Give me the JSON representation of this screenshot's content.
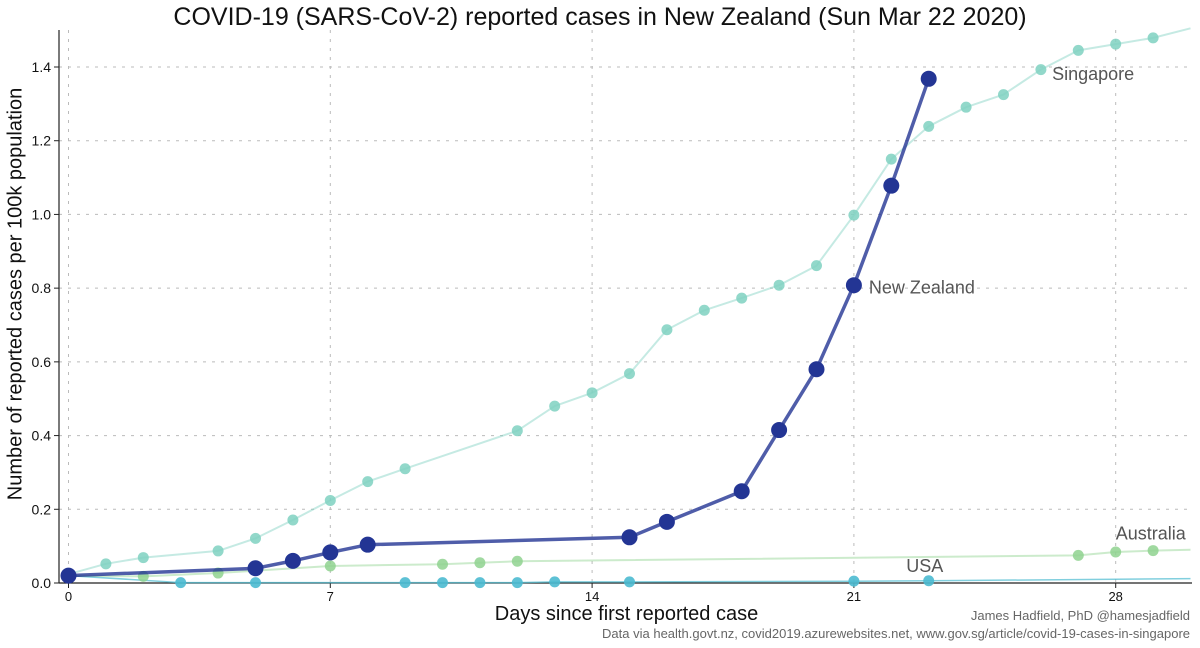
{
  "title": "COVID-19 (SARS-CoV-2) reported cases in New Zealand (Sun Mar 22 2020)",
  "credit": "James Hadfield, PhD @hamesjadfield",
  "source": "Data via health.govt.nz, covid2019.azurewebsites.net, www.gov.sg/article/covid-19-cases-in-singapore",
  "chart_data": {
    "type": "line",
    "xlabel": "Days since first reported case",
    "ylabel": "Number of reported cases per 100k population",
    "xlim": [
      -0.3,
      30
    ],
    "ylim": [
      0,
      1.5
    ],
    "x_ticks": [
      0,
      7,
      14,
      21,
      28
    ],
    "y_ticks": [
      0.0,
      0.2,
      0.4,
      0.6,
      0.8,
      1.0,
      1.2,
      1.4
    ],
    "y_tick_labels": [
      "0.0",
      "0.2",
      "0.4",
      "0.6",
      "0.8",
      "1.0",
      "1.2",
      "1.4"
    ],
    "grid": "dotted vertical and horizontal",
    "series": [
      {
        "name": "Singapore",
        "color": "#7fd1c1",
        "points": [
          [
            0,
            0.024
          ],
          [
            1,
            0.052
          ],
          [
            2,
            0.069
          ],
          [
            4,
            0.087
          ],
          [
            5,
            0.121
          ],
          [
            6,
            0.171
          ],
          [
            7,
            0.224
          ],
          [
            8,
            0.275
          ],
          [
            9,
            0.31
          ],
          [
            12,
            0.413
          ],
          [
            13,
            0.48
          ],
          [
            14,
            0.516
          ],
          [
            15,
            0.568
          ],
          [
            16,
            0.687
          ],
          [
            17,
            0.74
          ],
          [
            18,
            0.773
          ],
          [
            19,
            0.808
          ],
          [
            20,
            0.861
          ],
          [
            21,
            0.998
          ],
          [
            22,
            1.15
          ],
          [
            23,
            1.239
          ],
          [
            24,
            1.291
          ],
          [
            25,
            1.325
          ],
          [
            26,
            1.393
          ],
          [
            27,
            1.445
          ],
          [
            28,
            1.462
          ],
          [
            29,
            1.479
          ]
        ],
        "line_extends_to": [
          30,
          1.505
        ]
      },
      {
        "name": "New Zealand",
        "color": "#233594",
        "points": [
          [
            0,
            0.02
          ],
          [
            5,
            0.04
          ],
          [
            6,
            0.06
          ],
          [
            7,
            0.083
          ],
          [
            8,
            0.104
          ],
          [
            15,
            0.124
          ],
          [
            16,
            0.166
          ],
          [
            18,
            0.249
          ],
          [
            19,
            0.415
          ],
          [
            20,
            0.58
          ],
          [
            21,
            0.808
          ],
          [
            22,
            1.078
          ],
          [
            23,
            1.368
          ]
        ]
      },
      {
        "name": "Australia",
        "color": "#8fd28f",
        "points": [
          [
            2,
            0.018
          ],
          [
            4,
            0.027
          ],
          [
            7,
            0.046
          ],
          [
            10,
            0.051
          ],
          [
            11,
            0.055
          ],
          [
            12,
            0.059
          ],
          [
            27,
            0.075
          ],
          [
            28,
            0.084
          ],
          [
            29,
            0.088
          ]
        ],
        "line_extends_to": [
          30,
          0.09
        ]
      },
      {
        "name": "USA",
        "color": "#4bbad0",
        "points": [
          [
            3,
            0.001
          ],
          [
            5,
            0.001
          ],
          [
            9,
            0.001
          ],
          [
            10,
            0.001
          ],
          [
            11,
            0.001
          ],
          [
            12,
            0.001
          ],
          [
            13,
            0.003
          ],
          [
            15,
            0.003
          ],
          [
            21,
            0.005
          ],
          [
            23,
            0.006
          ]
        ],
        "line_extends_to": [
          30,
          0.012
        ]
      }
    ],
    "annotations": [
      {
        "text": "Singapore",
        "series": "Singapore"
      },
      {
        "text": "New Zealand",
        "series": "New Zealand"
      },
      {
        "text": "Australia",
        "series": "Australia"
      },
      {
        "text": "USA",
        "series": "USA"
      }
    ]
  }
}
